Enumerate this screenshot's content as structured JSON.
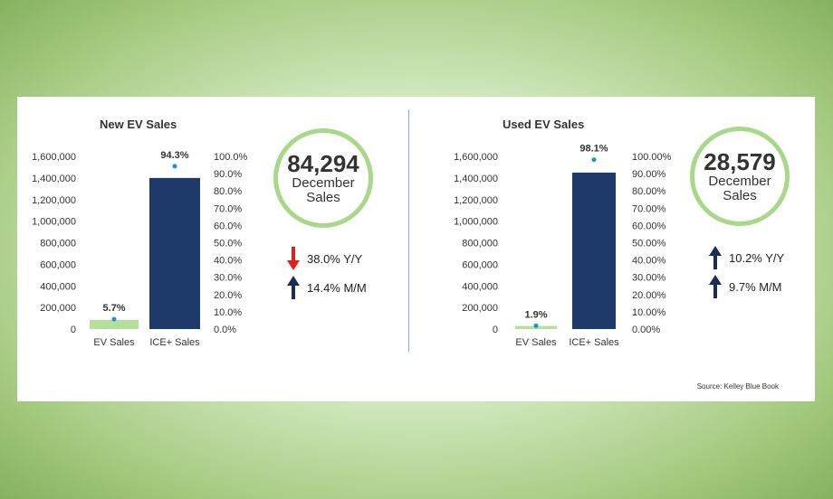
{
  "colors": {
    "ev_bar": "#b5e09a",
    "ice_bar": "#1e3a6b",
    "share_dot": "#1f8fd6",
    "ring": "#a8d88a",
    "up_arrow": "#1c2d52",
    "down_arrow": "#e02020"
  },
  "chart_data": [
    {
      "type": "bar",
      "title": "New EV Sales",
      "categories": [
        "EV Sales",
        "ICE+ Sales"
      ],
      "values": [
        85000,
        1400000
      ],
      "share_values": [
        5.7,
        94.3
      ],
      "share_labels": [
        "5.7%",
        "94.3%"
      ],
      "ylim": [
        0,
        1600000
      ],
      "y2lim": [
        0,
        100
      ],
      "yticks": [
        "0",
        "200,000",
        "400,000",
        "600,000",
        "800,000",
        "1,000,000",
        "1,200,000",
        "1,400,000",
        "1,600,000"
      ],
      "y2ticks": [
        "0.0%",
        "10.0%",
        "20.0%",
        "30.0%",
        "40.0%",
        "50.0%",
        "60.0%",
        "70.0%",
        "80.0%",
        "90.0%",
        "100.0%"
      ],
      "grid": false
    },
    {
      "type": "bar",
      "title": "Used EV Sales",
      "categories": [
        "EV Sales",
        "ICE+ Sales"
      ],
      "values": [
        28000,
        1450000
      ],
      "share_values": [
        1.9,
        98.1
      ],
      "share_labels": [
        "1.9%",
        "98.1%"
      ],
      "ylim": [
        0,
        1600000
      ],
      "y2lim": [
        0,
        100
      ],
      "yticks": [
        "0",
        "200,000",
        "400,000",
        "600,000",
        "800,000",
        "1,000,000",
        "1,200,000",
        "1,400,000",
        "1,600,000"
      ],
      "y2ticks": [
        "0.00%",
        "10.00%",
        "20.00%",
        "30.00%",
        "40.00%",
        "50.00%",
        "60.00%",
        "70.00%",
        "80.00%",
        "90.00%",
        "100.00%"
      ],
      "grid": false
    }
  ],
  "new": {
    "total": "84,294",
    "line1": "December",
    "line2": "Sales",
    "yoy": "38.0% Y/Y",
    "yoy_dir": "down",
    "mom": "14.4% M/M",
    "mom_dir": "up"
  },
  "used": {
    "total": "28,579",
    "line1": "December",
    "line2": "Sales",
    "yoy": "10.2% Y/Y",
    "yoy_dir": "up",
    "mom": "9.7% M/M",
    "mom_dir": "up"
  },
  "source": "Source: Kelley Blue Book"
}
